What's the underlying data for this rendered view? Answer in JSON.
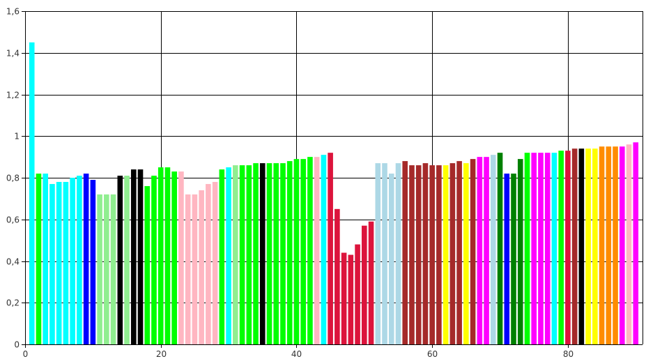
{
  "chart_data": {
    "type": "bar",
    "title": "",
    "xlabel": "",
    "ylabel": "",
    "xlim": [
      0,
      91
    ],
    "ylim": [
      0,
      1.6
    ],
    "grid": true,
    "legend": "none",
    "x_ticks": [
      {
        "value": 0,
        "label": "0"
      },
      {
        "value": 20,
        "label": "20"
      },
      {
        "value": 40,
        "label": "40"
      },
      {
        "value": 60,
        "label": "60"
      },
      {
        "value": 80,
        "label": "80"
      }
    ],
    "y_ticks": [
      {
        "value": 0,
        "label": "0"
      },
      {
        "value": 0.2,
        "label": "0,2"
      },
      {
        "value": 0.4,
        "label": "0,4"
      },
      {
        "value": 0.6,
        "label": "0,6"
      },
      {
        "value": 0.8,
        "label": "0,8"
      },
      {
        "value": 1.0,
        "label": "1"
      },
      {
        "value": 1.2,
        "label": "1,2"
      },
      {
        "value": 1.4,
        "label": "1,4"
      },
      {
        "value": 1.6,
        "label": "1,6"
      }
    ],
    "bars": [
      {
        "x": 1,
        "value": 1.45,
        "color": "#00ffff"
      },
      {
        "x": 2,
        "value": 0.82,
        "color": "#00ff00"
      },
      {
        "x": 3,
        "value": 0.82,
        "color": "#00ffff"
      },
      {
        "x": 4,
        "value": 0.77,
        "color": "#00ffff"
      },
      {
        "x": 5,
        "value": 0.78,
        "color": "#00ffff"
      },
      {
        "x": 6,
        "value": 0.78,
        "color": "#00ffff"
      },
      {
        "x": 7,
        "value": 0.8,
        "color": "#00ffff"
      },
      {
        "x": 8,
        "value": 0.81,
        "color": "#00ffff"
      },
      {
        "x": 9,
        "value": 0.82,
        "color": "#0000ff"
      },
      {
        "x": 10,
        "value": 0.79,
        "color": "#0000ff"
      },
      {
        "x": 11,
        "value": 0.72,
        "color": "#90ee90"
      },
      {
        "x": 12,
        "value": 0.72,
        "color": "#90ee90"
      },
      {
        "x": 13,
        "value": 0.72,
        "color": "#90ee90"
      },
      {
        "x": 14,
        "value": 0.81,
        "color": "#000000"
      },
      {
        "x": 15,
        "value": 0.81,
        "color": "#90ee90"
      },
      {
        "x": 16,
        "value": 0.84,
        "color": "#000000"
      },
      {
        "x": 17,
        "value": 0.84,
        "color": "#000000"
      },
      {
        "x": 18,
        "value": 0.76,
        "color": "#00ff00"
      },
      {
        "x": 19,
        "value": 0.81,
        "color": "#00ff00"
      },
      {
        "x": 20,
        "value": 0.85,
        "color": "#00ff00"
      },
      {
        "x": 21,
        "value": 0.85,
        "color": "#00ff00"
      },
      {
        "x": 22,
        "value": 0.83,
        "color": "#00ff00"
      },
      {
        "x": 23,
        "value": 0.83,
        "color": "#ffb6c1"
      },
      {
        "x": 24,
        "value": 0.72,
        "color": "#ffb6c1"
      },
      {
        "x": 25,
        "value": 0.72,
        "color": "#ffb6c1"
      },
      {
        "x": 26,
        "value": 0.74,
        "color": "#ffb6c1"
      },
      {
        "x": 27,
        "value": 0.77,
        "color": "#ffb6c1"
      },
      {
        "x": 28,
        "value": 0.78,
        "color": "#ffb6c1"
      },
      {
        "x": 29,
        "value": 0.84,
        "color": "#00ff00"
      },
      {
        "x": 30,
        "value": 0.85,
        "color": "#00ffff"
      },
      {
        "x": 31,
        "value": 0.86,
        "color": "#90ee90"
      },
      {
        "x": 32,
        "value": 0.86,
        "color": "#00ff00"
      },
      {
        "x": 33,
        "value": 0.86,
        "color": "#00ff00"
      },
      {
        "x": 34,
        "value": 0.87,
        "color": "#00ff00"
      },
      {
        "x": 35,
        "value": 0.87,
        "color": "#000000"
      },
      {
        "x": 36,
        "value": 0.87,
        "color": "#00ff00"
      },
      {
        "x": 37,
        "value": 0.87,
        "color": "#00ff00"
      },
      {
        "x": 38,
        "value": 0.87,
        "color": "#00ff00"
      },
      {
        "x": 39,
        "value": 0.88,
        "color": "#00ff00"
      },
      {
        "x": 40,
        "value": 0.89,
        "color": "#00ff00"
      },
      {
        "x": 41,
        "value": 0.89,
        "color": "#00ff00"
      },
      {
        "x": 42,
        "value": 0.9,
        "color": "#00ff00"
      },
      {
        "x": 43,
        "value": 0.9,
        "color": "#ffb6c1"
      },
      {
        "x": 44,
        "value": 0.91,
        "color": "#00ffff"
      },
      {
        "x": 45,
        "value": 0.92,
        "color": "#dc143c"
      },
      {
        "x": 46,
        "value": 0.65,
        "color": "#dc143c"
      },
      {
        "x": 47,
        "value": 0.44,
        "color": "#dc143c"
      },
      {
        "x": 48,
        "value": 0.43,
        "color": "#dc143c"
      },
      {
        "x": 49,
        "value": 0.48,
        "color": "#dc143c"
      },
      {
        "x": 50,
        "value": 0.57,
        "color": "#dc143c"
      },
      {
        "x": 51,
        "value": 0.59,
        "color": "#dc143c"
      },
      {
        "x": 52,
        "value": 0.87,
        "color": "#add8e6"
      },
      {
        "x": 53,
        "value": 0.87,
        "color": "#add8e6"
      },
      {
        "x": 54,
        "value": 0.82,
        "color": "#add8e6"
      },
      {
        "x": 55,
        "value": 0.87,
        "color": "#add8e6"
      },
      {
        "x": 56,
        "value": 0.88,
        "color": "#a52a2a"
      },
      {
        "x": 57,
        "value": 0.86,
        "color": "#a52a2a"
      },
      {
        "x": 58,
        "value": 0.86,
        "color": "#a52a2a"
      },
      {
        "x": 59,
        "value": 0.87,
        "color": "#a52a2a"
      },
      {
        "x": 60,
        "value": 0.86,
        "color": "#a52a2a"
      },
      {
        "x": 61,
        "value": 0.86,
        "color": "#a52a2a"
      },
      {
        "x": 62,
        "value": 0.86,
        "color": "#ffff00"
      },
      {
        "x": 63,
        "value": 0.87,
        "color": "#a52a2a"
      },
      {
        "x": 64,
        "value": 0.88,
        "color": "#a52a2a"
      },
      {
        "x": 65,
        "value": 0.87,
        "color": "#ffff00"
      },
      {
        "x": 66,
        "value": 0.89,
        "color": "#a52a2a"
      },
      {
        "x": 67,
        "value": 0.9,
        "color": "#ff00ff"
      },
      {
        "x": 68,
        "value": 0.9,
        "color": "#ff00ff"
      },
      {
        "x": 69,
        "value": 0.91,
        "color": "#add8e6"
      },
      {
        "x": 70,
        "value": 0.92,
        "color": "#008000"
      },
      {
        "x": 71,
        "value": 0.82,
        "color": "#0000ff"
      },
      {
        "x": 72,
        "value": 0.82,
        "color": "#008000"
      },
      {
        "x": 73,
        "value": 0.89,
        "color": "#008000"
      },
      {
        "x": 74,
        "value": 0.92,
        "color": "#00ff00"
      },
      {
        "x": 75,
        "value": 0.92,
        "color": "#ff00ff"
      },
      {
        "x": 76,
        "value": 0.92,
        "color": "#ff00ff"
      },
      {
        "x": 77,
        "value": 0.92,
        "color": "#ff00ff"
      },
      {
        "x": 78,
        "value": 0.92,
        "color": "#00ffff"
      },
      {
        "x": 79,
        "value": 0.93,
        "color": "#00ff00"
      },
      {
        "x": 80,
        "value": 0.93,
        "color": "#dc143c"
      },
      {
        "x": 81,
        "value": 0.94,
        "color": "#a52a2a"
      },
      {
        "x": 82,
        "value": 0.94,
        "color": "#000000"
      },
      {
        "x": 83,
        "value": 0.94,
        "color": "#ffff00"
      },
      {
        "x": 84,
        "value": 0.94,
        "color": "#ffff00"
      },
      {
        "x": 85,
        "value": 0.95,
        "color": "#ff8c00"
      },
      {
        "x": 86,
        "value": 0.95,
        "color": "#ff8c00"
      },
      {
        "x": 87,
        "value": 0.95,
        "color": "#ff8c00"
      },
      {
        "x": 88,
        "value": 0.95,
        "color": "#ff00ff"
      },
      {
        "x": 89,
        "value": 0.96,
        "color": "#ffb6c1"
      },
      {
        "x": 90,
        "value": 0.97,
        "color": "#ff00ff"
      }
    ]
  }
}
